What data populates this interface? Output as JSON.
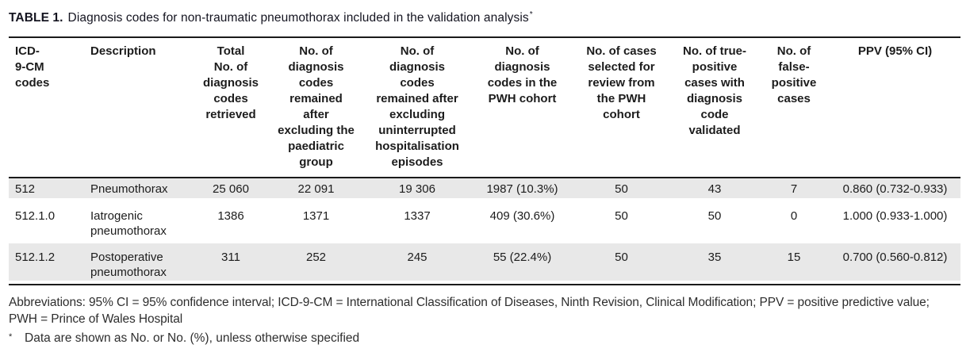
{
  "title": {
    "label": "TABLE 1.",
    "text": "Diagnosis codes for non-traumatic pneumothorax included in the validation analysis",
    "footnote_marker": "*"
  },
  "table": {
    "columns": [
      {
        "id": "icd_codes",
        "label": "ICD-\n9-CM\ncodes",
        "align": "left"
      },
      {
        "id": "description",
        "label": "Description",
        "align": "left"
      },
      {
        "id": "total_retrieved",
        "label": "Total\nNo. of\ndiagnosis\ncodes\nretrieved",
        "align": "center"
      },
      {
        "id": "after_paediatric",
        "label": "No. of\ndiagnosis\ncodes\nremained\nafter\nexcluding the\npaediatric\ngroup",
        "align": "center"
      },
      {
        "id": "after_hospitalisation",
        "label": "No. of\ndiagnosis\ncodes\nremained after\nexcluding\nuninterrupted\nhospitalisation\nepisodes",
        "align": "center"
      },
      {
        "id": "pwh_cohort",
        "label": "No. of\ndiagnosis\ncodes in the\nPWH cohort",
        "align": "center"
      },
      {
        "id": "selected_review",
        "label": "No. of cases\nselected for\nreview from\nthe PWH\ncohort",
        "align": "center"
      },
      {
        "id": "true_positive",
        "label": "No. of true-\npositive\ncases with\ndiagnosis\ncode\nvalidated",
        "align": "center"
      },
      {
        "id": "false_positive",
        "label": "No. of\nfalse-\npositive\ncases",
        "align": "center"
      },
      {
        "id": "ppv",
        "label": "PPV (95% CI)",
        "align": "center"
      }
    ],
    "rows": [
      {
        "shaded": true,
        "cells": [
          "512",
          "Pneumothorax",
          "25 060",
          "22 091",
          "19 306",
          "1987 (10.3%)",
          "50",
          "43",
          "7",
          "0.860 (0.732-0.933)"
        ]
      },
      {
        "shaded": false,
        "cells": [
          "512.1.0",
          "Iatrogenic pneumothorax",
          "1386",
          "1371",
          "1337",
          "409 (30.6%)",
          "50",
          "50",
          "0",
          "1.000 (0.933-1.000)"
        ]
      },
      {
        "shaded": true,
        "cells": [
          "512.1.2",
          "Postoperative pneumothorax",
          "311",
          "252",
          "245",
          "55 (22.4%)",
          "50",
          "35",
          "15",
          "0.700 (0.560-0.812)"
        ]
      }
    ]
  },
  "footnotes": {
    "abbreviations": "Abbreviations: 95% CI = 95% confidence interval; ICD-9-CM = International Classification of Diseases, Ninth Revision, Clinical Modification; PPV = positive predictive value; PWH = Prince of Wales Hospital",
    "asterisk_marker": "*",
    "asterisk_text": "Data are shown as No. or No. (%), unless otherwise specified"
  },
  "colors": {
    "row_shade": "#e8e8e8",
    "rule": "#1a1a1a",
    "text": "#1c1c1c",
    "footnote_text": "#2e2e2e"
  }
}
